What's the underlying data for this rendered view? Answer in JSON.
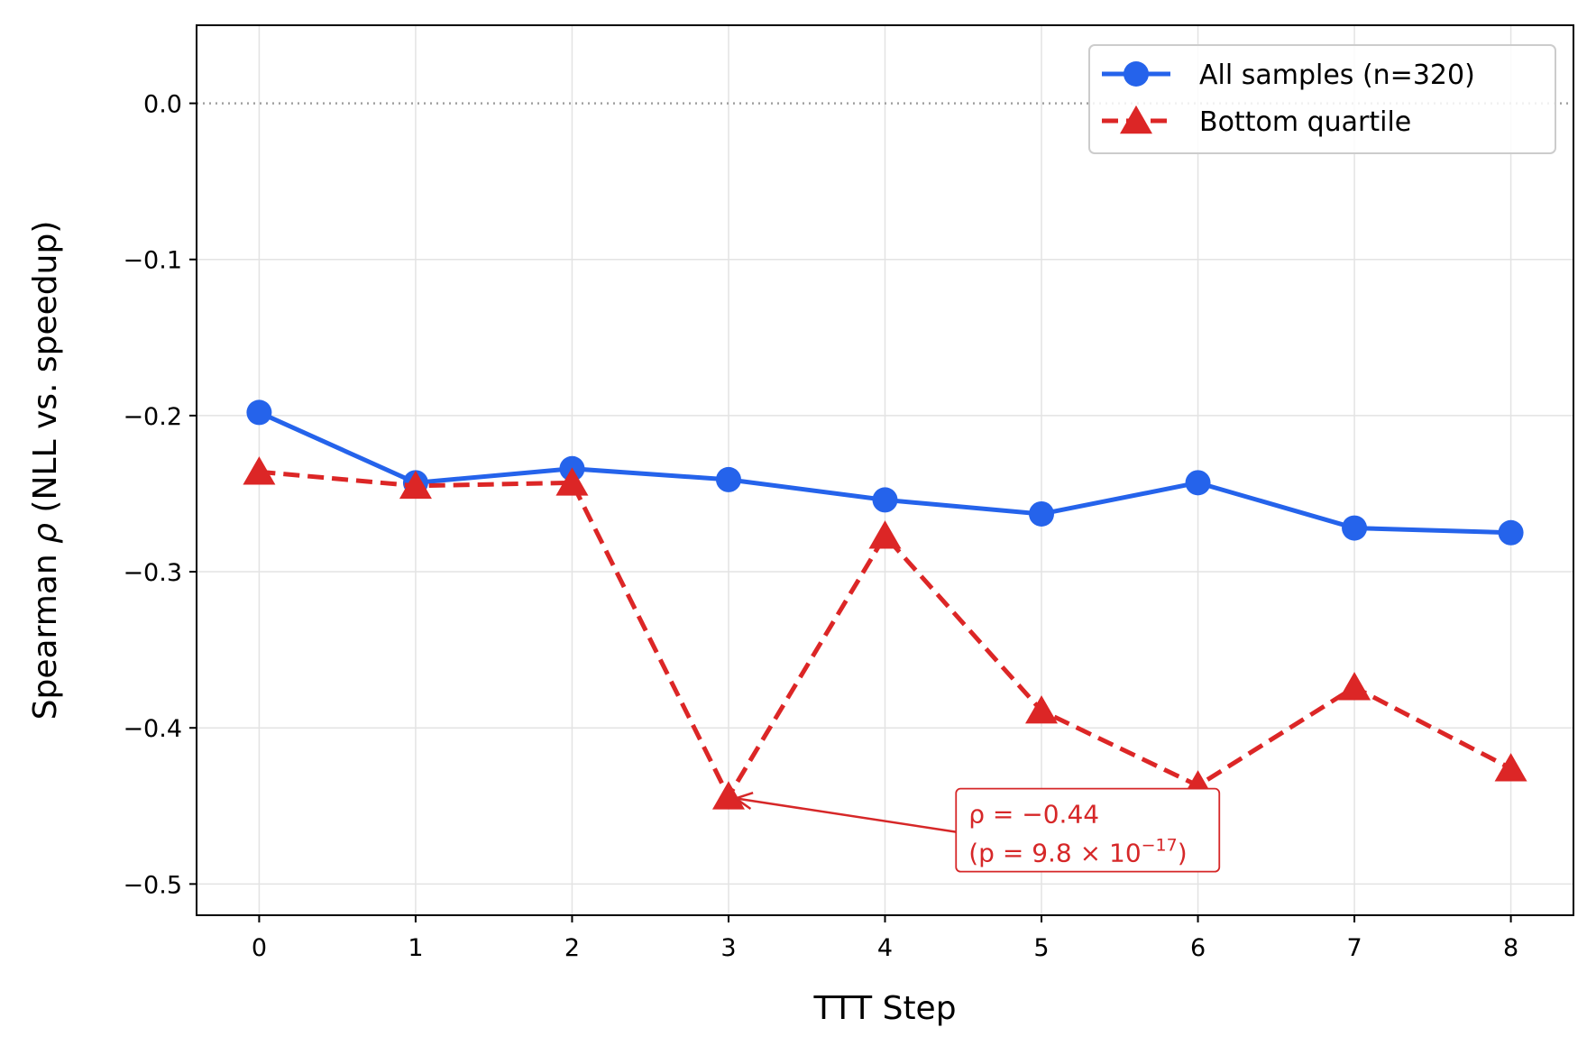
{
  "chart_data": {
    "type": "line",
    "xlabel": "TTT Step",
    "ylabel_prefix": "Spearman ",
    "ylabel_symbol": "ρ",
    "ylabel_suffix": " (NLL vs. speedup)",
    "x": [
      0,
      1,
      2,
      3,
      4,
      5,
      6,
      7,
      8
    ],
    "xlim": [
      -0.4,
      8.4
    ],
    "ylim": [
      -0.52,
      0.05
    ],
    "xticks": [
      "0",
      "1",
      "2",
      "3",
      "4",
      "5",
      "6",
      "7",
      "8"
    ],
    "yticks": [
      0.0,
      -0.1,
      -0.2,
      -0.3,
      -0.4,
      -0.5
    ],
    "ytick_labels": [
      "0.0",
      "−0.1",
      "−0.2",
      "−0.3",
      "−0.4",
      "−0.5"
    ],
    "grid": true,
    "reference_line_y": 0.0,
    "legend_position": "top-right",
    "series": [
      {
        "name": "All samples (n=320)",
        "color": "#2563eb",
        "marker": "circle",
        "linestyle": "solid",
        "values": [
          -0.198,
          -0.243,
          -0.234,
          -0.241,
          -0.254,
          -0.263,
          -0.243,
          -0.272,
          -0.275
        ]
      },
      {
        "name": "Bottom quartile",
        "color": "#dc2626",
        "marker": "triangle",
        "linestyle": "dashed",
        "values": [
          -0.236,
          -0.245,
          -0.243,
          -0.444,
          -0.277,
          -0.389,
          -0.437,
          -0.374,
          -0.426
        ]
      }
    ],
    "annotation": {
      "line1": "ρ = −0.44",
      "line2_prefix": "(p = 9.8 × 10",
      "line2_exp": "−17",
      "line2_suffix": ")",
      "target_x": 3,
      "target_y": -0.444,
      "text_x": 4.5,
      "text_y": -0.458,
      "color": "#d62728"
    }
  }
}
